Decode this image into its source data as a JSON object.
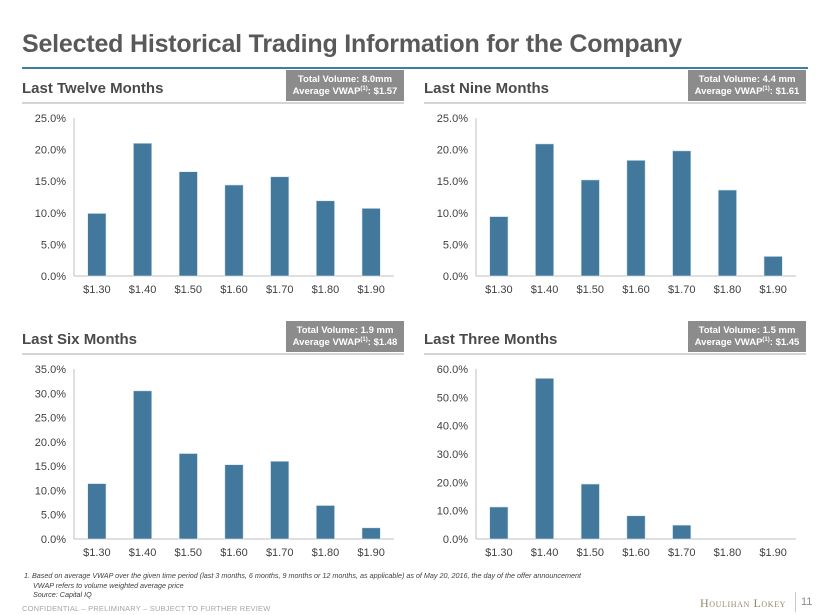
{
  "page": {
    "title": "Selected Historical Trading Information for the Company",
    "footnotes": [
      "1. Based on average VWAP over the given time period (last 3 months, 6 months, 9 months or 12 months, as applicable) as of May 20, 2016, the day of the offer announcement",
      "VWAP refers to volume weighted average price",
      "Source: Capital IQ"
    ],
    "confidential": "CONFIDENTIAL – PRELIMINARY – SUBJECT TO FURTHER REVIEW",
    "brand": "Houlihan Lokey",
    "page_number": "11",
    "bar_color": "#41789b",
    "title_rule_color": "#3c7fa6"
  },
  "panels": [
    {
      "title": "Last Twelve Months",
      "volume_label": "Total Volume: 8.0mm",
      "vwap_prefix": "Average VWAP",
      "vwap_sup": "(1)",
      "vwap_value": ": $1.57"
    },
    {
      "title": "Last Nine Months",
      "volume_label": "Total Volume: 4.4 mm",
      "vwap_prefix": "Average VWAP",
      "vwap_sup": "(1)",
      "vwap_value": ": $1.61"
    },
    {
      "title": "Last Six Months",
      "volume_label": "Total Volume: 1.9 mm",
      "vwap_prefix": "Average VWAP",
      "vwap_sup": "(1)",
      "vwap_value": ": $1.48"
    },
    {
      "title": "Last Three Months",
      "volume_label": "Total Volume: 1.5 mm",
      "vwap_prefix": "Average VWAP",
      "vwap_sup": "(1)",
      "vwap_value": ": $1.45"
    }
  ],
  "chart_data": [
    {
      "type": "bar",
      "title": "Last Twelve Months",
      "categories": [
        "$1.30",
        "$1.40",
        "$1.50",
        "$1.60",
        "$1.70",
        "$1.80",
        "$1.90"
      ],
      "values": [
        9.9,
        21.0,
        16.5,
        14.4,
        15.7,
        11.9,
        10.7
      ],
      "yticks": [
        "0.0%",
        "5.0%",
        "10.0%",
        "15.0%",
        "20.0%",
        "25.0%"
      ],
      "ylim": [
        0,
        25
      ],
      "ystep": 5,
      "xlabel": "",
      "ylabel": "",
      "grid": false
    },
    {
      "type": "bar",
      "title": "Last Nine Months",
      "categories": [
        "$1.30",
        "$1.40",
        "$1.50",
        "$1.60",
        "$1.70",
        "$1.80",
        "$1.90"
      ],
      "values": [
        9.4,
        20.9,
        15.2,
        18.3,
        19.8,
        13.6,
        3.1
      ],
      "yticks": [
        "0.0%",
        "5.0%",
        "10.0%",
        "15.0%",
        "20.0%",
        "25.0%"
      ],
      "ylim": [
        0,
        25
      ],
      "ystep": 5,
      "xlabel": "",
      "ylabel": "",
      "grid": false
    },
    {
      "type": "bar",
      "title": "Last Six Months",
      "categories": [
        "$1.30",
        "$1.40",
        "$1.50",
        "$1.60",
        "$1.70",
        "$1.80",
        "$1.90"
      ],
      "values": [
        11.4,
        30.5,
        17.6,
        15.3,
        16.0,
        6.9,
        2.3
      ],
      "yticks": [
        "0.0%",
        "5.0%",
        "10.0%",
        "15.0%",
        "20.0%",
        "25.0%",
        "30.0%",
        "35.0%"
      ],
      "ylim": [
        0,
        35
      ],
      "ystep": 5,
      "xlabel": "",
      "ylabel": "",
      "grid": false
    },
    {
      "type": "bar",
      "title": "Last Three Months",
      "categories": [
        "$1.30",
        "$1.40",
        "$1.50",
        "$1.60",
        "$1.70",
        "$1.80",
        "$1.90"
      ],
      "values": [
        11.3,
        56.7,
        19.4,
        8.2,
        4.9,
        0.0,
        0.0
      ],
      "yticks": [
        "0.0%",
        "10.0%",
        "20.0%",
        "30.0%",
        "40.0%",
        "50.0%",
        "60.0%"
      ],
      "ylim": [
        0,
        60
      ],
      "ystep": 10,
      "xlabel": "",
      "ylabel": "",
      "grid": false
    }
  ]
}
